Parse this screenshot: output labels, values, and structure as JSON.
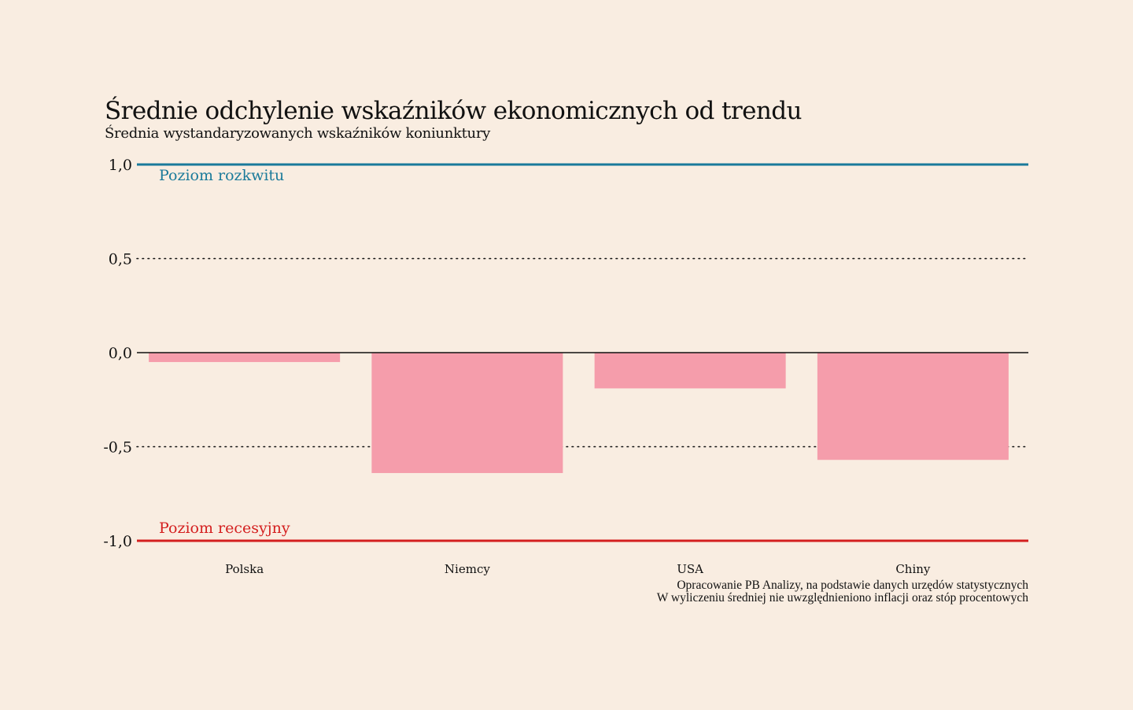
{
  "chart_data": {
    "type": "bar",
    "title": "Średnie odchylenie wskaźników ekonomicznych od trendu",
    "subtitle": "Średnia wystandaryzowanych wskaźników koniunktury",
    "categories": [
      "Polska",
      "Niemcy",
      "USA",
      "Chiny"
    ],
    "values": [
      -0.05,
      -0.64,
      -0.19,
      -0.57
    ],
    "ylim": [
      -1.0,
      1.0
    ],
    "yticks": [
      {
        "value": 1.0,
        "label": "1,0"
      },
      {
        "value": 0.5,
        "label": "0,5"
      },
      {
        "value": 0.0,
        "label": "0,0"
      },
      {
        "value": -0.5,
        "label": "-0,5"
      },
      {
        "value": -1.0,
        "label": "-1,0"
      }
    ],
    "reference_lines": [
      {
        "value": 1.0,
        "label": "Poziom rozkwitu",
        "color": "#1a7a9a"
      },
      {
        "value": -1.0,
        "label": "Poziom recesyjny",
        "color": "#d41f1f"
      }
    ],
    "bar_color": "#f59dab",
    "grid": "dotted at ±0,5",
    "notes": [
      "Opracowanie PB Analizy, na podstawie danych urzędów statystycznych",
      "W wyliczeniu średniej nie uwzględnieniono inflacji oraz stóp procentowych"
    ]
  }
}
